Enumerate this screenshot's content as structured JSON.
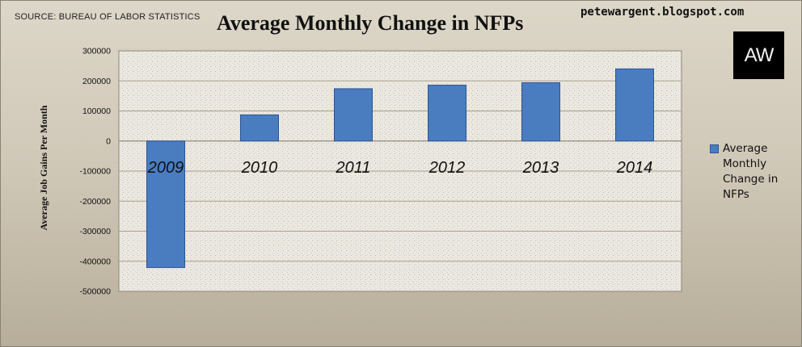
{
  "source_text": "SOURCE: BUREAU OF LABOR STATISTICS",
  "blog_text": "petewargent.blogspot.com",
  "logo_text": "AW",
  "colors": {
    "bar": "#4a7cc0",
    "bar_edge": "#2d5592",
    "grid": "#a8a08f"
  },
  "chart_data": {
    "type": "bar",
    "title": "Average Monthly Change in NFPs",
    "xlabel": "",
    "ylabel": "Average Job Gains Per Month",
    "categories": [
      "2009",
      "2010",
      "2011",
      "2012",
      "2013",
      "2014"
    ],
    "series": [
      {
        "name": "Average Monthly Change in NFPs",
        "values": [
          -421000,
          87000,
          174000,
          186000,
          194000,
          240000
        ]
      }
    ],
    "ylim": [
      -500000,
      300000
    ],
    "yticks": [
      300000,
      200000,
      100000,
      0,
      -100000,
      -200000,
      -300000,
      -400000,
      -500000
    ],
    "grid": true,
    "legend_position": "right"
  }
}
